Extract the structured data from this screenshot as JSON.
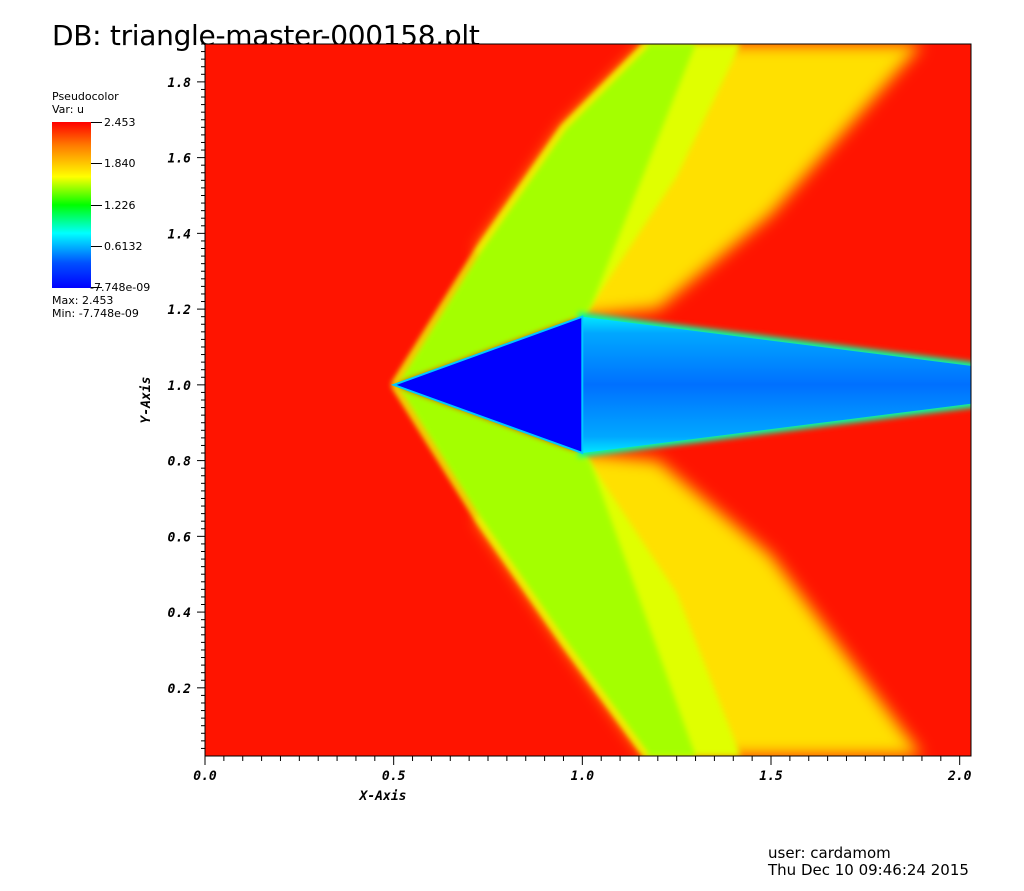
{
  "header": {
    "db_title": "DB: triangle-master-000158.plt"
  },
  "legend": {
    "plot_type": "Pseudocolor",
    "var_label": "Var: u",
    "tick_labels": [
      "2.453",
      "1.840",
      "1.226",
      "0.6132",
      "-7.748e-09"
    ],
    "max_label": "Max:  2.453",
    "min_label": "Min: -7.748e-09"
  },
  "footer": {
    "user": "user: cardamom",
    "date": "Thu Dec 10 09:46:24 2015"
  },
  "chart_data": {
    "type": "heatmap",
    "title": "DB: triangle-master-000158.plt",
    "xlabel": "X-Axis",
    "ylabel": "Y-Axis",
    "xlim": [
      0.0,
      2.03
    ],
    "ylim": [
      0.02,
      1.9
    ],
    "x_ticks": [
      0.0,
      0.5,
      1.0,
      1.5,
      2.0
    ],
    "x_tick_labels": [
      "0.0",
      "0.5",
      "1.0",
      "1.5",
      "2.0"
    ],
    "y_ticks": [
      0.2,
      0.4,
      0.6,
      0.8,
      1.0,
      1.2,
      1.4,
      1.6,
      1.8
    ],
    "y_tick_labels": [
      "0.2",
      "0.4",
      "0.6",
      "0.8",
      "1.0",
      "1.2",
      "1.4",
      "1.6",
      "1.8"
    ],
    "variable": "u",
    "colorbar": {
      "min": -7.748e-09,
      "max": 2.453,
      "ticks": [
        2.453,
        1.84,
        1.226,
        0.6132,
        -7.748e-09
      ]
    },
    "freestream_value": 2.453,
    "body_triangle": {
      "vertices": [
        [
          0.5,
          1.0
        ],
        [
          1.0,
          1.18
        ],
        [
          1.0,
          0.82
        ]
      ],
      "value": 0.0
    },
    "wake": {
      "vertices": [
        [
          1.0,
          1.18
        ],
        [
          2.03,
          1.05
        ],
        [
          2.03,
          0.95
        ],
        [
          1.0,
          0.82
        ]
      ],
      "value": 0.45
    },
    "shock_band": {
      "upper": [
        [
          0.5,
          1.0
        ],
        [
          0.72,
          1.35
        ],
        [
          0.95,
          1.68
        ],
        [
          1.17,
          1.9
        ]
      ],
      "lower": [
        [
          0.5,
          1.0
        ],
        [
          0.72,
          0.65
        ],
        [
          0.95,
          0.32
        ],
        [
          1.17,
          0.02
        ]
      ],
      "value": 1.75
    },
    "expansion_band": {
      "upper_outer": [
        [
          1.17,
          1.9
        ],
        [
          1.42,
          1.9
        ]
      ],
      "lower_outer": [
        [
          1.17,
          0.02
        ],
        [
          1.42,
          0.02
        ]
      ],
      "value": 1.95
    }
  }
}
